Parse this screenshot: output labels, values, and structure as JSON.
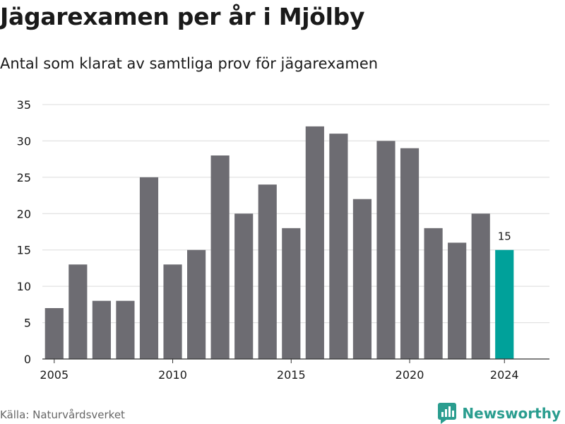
{
  "title": "Jägarexamen per år i Mjölby",
  "subtitle": "Antal som klarat av samtliga prov för jägarexamen",
  "source": "Källa: Naturvårdsverket",
  "brand": {
    "name": "Newsworthy",
    "icon": "newsworthy-logo-icon"
  },
  "colors": {
    "bar": "#6d6c72",
    "highlight": "#00a19a",
    "grid": "#dcdcdc",
    "text": "#1a1a1a"
  },
  "chart_data": {
    "type": "bar",
    "x": [
      2005,
      2006,
      2007,
      2008,
      2009,
      2010,
      2011,
      2012,
      2013,
      2014,
      2015,
      2016,
      2017,
      2018,
      2019,
      2020,
      2021,
      2022,
      2023,
      2024
    ],
    "values": [
      7,
      13,
      8,
      8,
      25,
      13,
      15,
      28,
      20,
      24,
      18,
      32,
      31,
      22,
      30,
      29,
      18,
      16,
      20,
      15
    ],
    "xticks": [
      2005,
      2010,
      2015,
      2020,
      2024
    ],
    "yticks": [
      0,
      5,
      10,
      15,
      20,
      25,
      30,
      35
    ],
    "ylim": [
      0,
      35
    ],
    "highlight": {
      "x": 2024,
      "label": "15"
    },
    "grid": true,
    "xlabel": "",
    "ylabel": ""
  }
}
